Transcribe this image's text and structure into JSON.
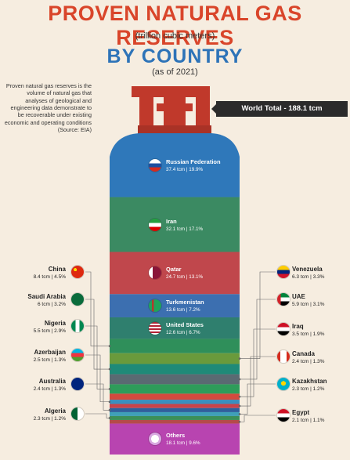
{
  "title_line1": "PROVEN NATURAL GAS RESERVES",
  "units": "(trillion cubic meters)",
  "title_line2": "BY COUNTRY",
  "as_of": "(as of 2021)",
  "description": "Proven natural gas reserves is the volume of natural gas that analyses of geological and engineering data demonstrate to be recoverable under existing economic and operating conditions (Source: EIA)",
  "world_total": "World Total - 188.1 tcm",
  "chart_data": {
    "type": "bar",
    "title": "PROVEN NATURAL GAS RESERVES BY COUNTRY",
    "unit": "trillion cubic meters",
    "total": 188.1,
    "categories": [
      "Russian Federation",
      "Iran",
      "Qatar",
      "Turkmenistan",
      "United States",
      "China",
      "Venezuela",
      "Saudi Arabia",
      "UAE",
      "Nigeria",
      "Iraq",
      "Azerbaijan",
      "Canada",
      "Australia",
      "Kazakhstan",
      "Algeria",
      "Egypt",
      "Others"
    ],
    "values": [
      37.4,
      32.1,
      24.7,
      13.6,
      12.6,
      8.4,
      6.3,
      6.0,
      5.9,
      5.5,
      3.5,
      2.5,
      2.4,
      2.4,
      2.3,
      2.3,
      2.1,
      18.1
    ],
    "shares": [
      19.9,
      17.1,
      13.1,
      7.2,
      6.7,
      4.5,
      3.3,
      3.2,
      3.1,
      2.9,
      1.9,
      1.3,
      1.3,
      1.3,
      1.2,
      1.2,
      1.1,
      9.6
    ],
    "items": [
      {
        "name": "Russian Federation",
        "label": "37.4 tcm  |  19.9%",
        "value": 37.4,
        "color": "#2f78ba",
        "side": "inside",
        "flag": "russia"
      },
      {
        "name": "Iran",
        "label": "32.1 tcm  |  17.1%",
        "value": 32.1,
        "color": "#3b8a62",
        "side": "inside",
        "flag": "iran"
      },
      {
        "name": "Qatar",
        "label": "24.7 tcm  |  13.1%",
        "value": 24.7,
        "color": "#c0474c",
        "side": "inside",
        "flag": "qatar"
      },
      {
        "name": "Turkmenistan",
        "label": "13.6 tcm  |  7.2%",
        "value": 13.6,
        "color": "#3c6fb0",
        "side": "inside",
        "flag": "turkmenistan"
      },
      {
        "name": "United States",
        "label": "12.6 tcm  |  6.7%",
        "value": 12.6,
        "color": "#2f7f6e",
        "side": "inside",
        "flag": "usa"
      },
      {
        "name": "China",
        "label": "8.4 tcm  |  4.5%",
        "value": 8.4,
        "color": "#2f8f5a",
        "side": "left",
        "flag": "china"
      },
      {
        "name": "Venezuela",
        "label": "6.3 tcm  |  3.3%",
        "value": 6.3,
        "color": "#6a9a3c",
        "side": "right",
        "flag": "venezuela"
      },
      {
        "name": "Saudi Arabia",
        "label": "6 tcm  |  3.2%",
        "value": 6.0,
        "color": "#1f8a78",
        "side": "left",
        "flag": "saudi"
      },
      {
        "name": "UAE",
        "label": "5.9 tcm  |  3.1%",
        "value": 5.9,
        "color": "#5a6a72",
        "side": "right",
        "flag": "uae"
      },
      {
        "name": "Nigeria",
        "label": "5.5 tcm  |  2.9%",
        "value": 5.5,
        "color": "#2e9c5a",
        "side": "left",
        "flag": "nigeria"
      },
      {
        "name": "Iraq",
        "label": "3.5 tcm  |  1.9%",
        "value": 3.5,
        "color": "#d34a3e",
        "side": "right",
        "flag": "iraq"
      },
      {
        "name": "Azerbaijan",
        "label": "2.5 tcm  |  1.3%",
        "value": 2.5,
        "color": "#3a8fbf",
        "side": "left",
        "flag": "azerbaijan"
      },
      {
        "name": "Canada",
        "label": "2.4 tcm  |  1.3%",
        "value": 2.4,
        "color": "#c9434a",
        "side": "right",
        "flag": "canada"
      },
      {
        "name": "Australia",
        "label": "2.4 tcm  |  1.3%",
        "value": 2.4,
        "color": "#2f5f9c",
        "side": "left",
        "flag": "australia"
      },
      {
        "name": "Kazakhstan",
        "label": "2.3 tcm  |  1.2%",
        "value": 2.3,
        "color": "#3fa0b8",
        "side": "right",
        "flag": "kazakhstan"
      },
      {
        "name": "Algeria",
        "label": "2.3 tcm  |  1.2%",
        "value": 2.3,
        "color": "#3c8f58",
        "side": "left",
        "flag": "algeria"
      },
      {
        "name": "Egypt",
        "label": "2.1 tcm  |  1.1%",
        "value": 2.1,
        "color": "#b54a4a",
        "side": "right",
        "flag": "egypt"
      },
      {
        "name": "Others",
        "label": "18.1 tcm  |  9.6%",
        "value": 18.1,
        "color": "#b844b0",
        "side": "inside",
        "flag": "world"
      }
    ]
  },
  "colors": {
    "title_red": "#d9452a",
    "title_blue": "#2d73b8",
    "valve": "#c0392b",
    "background": "#f6ede0"
  }
}
